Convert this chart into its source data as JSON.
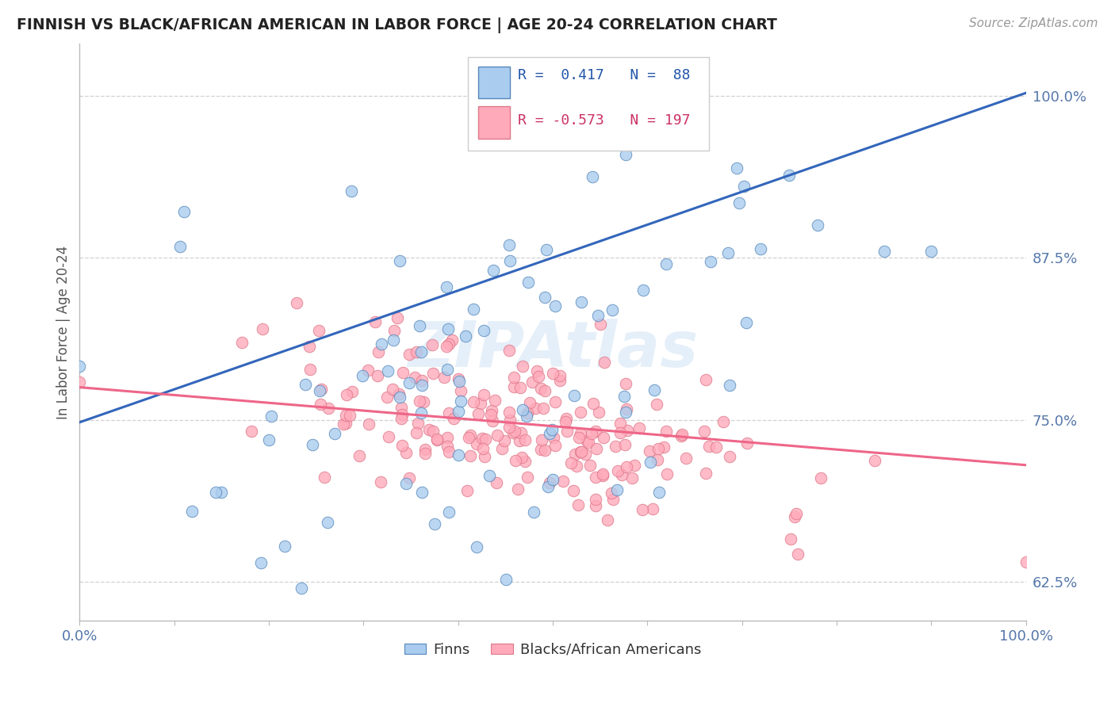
{
  "title": "FINNISH VS BLACK/AFRICAN AMERICAN IN LABOR FORCE | AGE 20-24 CORRELATION CHART",
  "source": "Source: ZipAtlas.com",
  "ylabel": "In Labor Force | Age 20-24",
  "xlim": [
    0.0,
    1.0
  ],
  "ylim": [
    0.595,
    1.04
  ],
  "yticks": [
    0.625,
    0.75,
    0.875,
    1.0
  ],
  "ytick_labels": [
    "62.5%",
    "75.0%",
    "87.5%",
    "100.0%"
  ],
  "xticks": [
    0.0,
    0.1,
    0.2,
    0.3,
    0.4,
    0.5,
    0.6,
    0.7,
    0.8,
    0.9,
    1.0
  ],
  "finn_color": "#aaccee",
  "finn_edge_color": "#5588bb",
  "black_color": "#ffaabb",
  "black_edge_color": "#dd7788",
  "finn_R": 0.417,
  "finn_N": 88,
  "black_R": -0.573,
  "black_N": 197,
  "finn_line_color": "#3366bb",
  "black_line_color": "#ee6688",
  "background_color": "#ffffff",
  "grid_color": "#cccccc",
  "label_color": "#5577aa",
  "seed": 42,
  "finn_line_start_y": 0.748,
  "finn_line_end_y": 1.002,
  "black_line_start_y": 0.775,
  "black_line_end_y": 0.715
}
